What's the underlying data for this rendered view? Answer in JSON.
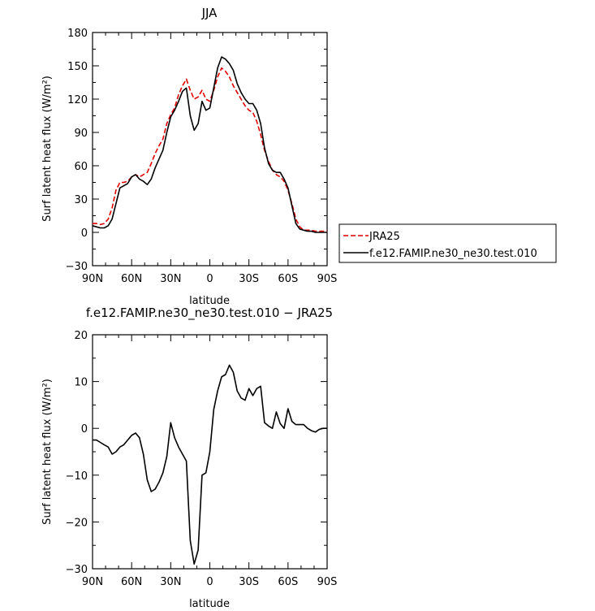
{
  "chart_data": [
    {
      "type": "line",
      "title": "JJA",
      "xlabel": "latitude",
      "ylabel": "Surf latent heat flux (W/m²)",
      "xlim": [
        90,
        -90
      ],
      "ylim": [
        -30,
        180
      ],
      "x_ticks": [
        90,
        60,
        30,
        0,
        -30,
        -60,
        -90
      ],
      "x_tick_labels": [
        "90N",
        "60N",
        "30N",
        "0",
        "30S",
        "60S",
        "90S"
      ],
      "y_ticks": [
        -30,
        0,
        30,
        60,
        90,
        120,
        150,
        180
      ],
      "y_tick_labels": [
        "−30",
        "0",
        "30",
        "60",
        "90",
        "120",
        "150",
        "180"
      ],
      "legend_position": "right",
      "series": [
        {
          "name": "JRA25",
          "color": "#e00000",
          "dash": "dashed",
          "x": [
            90,
            87,
            84,
            81,
            78,
            75,
            72,
            69,
            66,
            63,
            60,
            57,
            54,
            51,
            48,
            45,
            42,
            39,
            36,
            33,
            30,
            27,
            24,
            21,
            18,
            15,
            12,
            9,
            6,
            3,
            0,
            -3,
            -6,
            -9,
            -12,
            -15,
            -18,
            -21,
            -24,
            -27,
            -30,
            -33,
            -36,
            -39,
            -42,
            -45,
            -48,
            -51,
            -54,
            -57,
            -60,
            -63,
            -66,
            -69,
            -72,
            -75,
            -78,
            -81,
            -84,
            -87,
            -90
          ],
          "y": [
            8,
            8,
            7,
            8,
            12,
            22,
            38,
            45,
            45,
            46,
            50,
            52,
            50,
            52,
            54,
            62,
            71,
            78,
            84,
            98,
            106,
            112,
            124,
            132,
            138,
            128,
            120,
            122,
            128,
            120,
            118,
            128,
            140,
            148,
            145,
            140,
            132,
            126,
            120,
            114,
            110,
            108,
            100,
            88,
            74,
            64,
            56,
            52,
            50,
            46,
            38,
            26,
            12,
            5,
            2,
            2,
            2,
            1,
            1,
            1,
            1
          ]
        },
        {
          "name": "f.e12.FAMIP.ne30_ne30.test.010",
          "color": "#000000",
          "dash": "solid",
          "x": [
            90,
            87,
            84,
            81,
            78,
            75,
            72,
            69,
            66,
            63,
            60,
            57,
            54,
            51,
            48,
            45,
            42,
            39,
            36,
            33,
            30,
            27,
            24,
            21,
            18,
            15,
            12,
            9,
            6,
            3,
            0,
            -3,
            -6,
            -9,
            -12,
            -15,
            -18,
            -21,
            -24,
            -27,
            -30,
            -33,
            -36,
            -39,
            -42,
            -45,
            -48,
            -51,
            -54,
            -57,
            -60,
            -63,
            -66,
            -69,
            -72,
            -75,
            -78,
            -81,
            -84,
            -87,
            -90
          ],
          "y": [
            6,
            5,
            4,
            4,
            6,
            12,
            26,
            40,
            42,
            44,
            50,
            52,
            48,
            46,
            43,
            48,
            58,
            66,
            74,
            90,
            104,
            110,
            118,
            127,
            130,
            105,
            92,
            98,
            118,
            110,
            112,
            130,
            148,
            158,
            156,
            152,
            146,
            134,
            126,
            120,
            116,
            116,
            110,
            98,
            76,
            62,
            56,
            54,
            54,
            48,
            40,
            24,
            8,
            3,
            2,
            1,
            1,
            0,
            0,
            0,
            0
          ]
        }
      ]
    },
    {
      "type": "line",
      "title": "f.e12.FAMIP.ne30_ne30.test.010 − JRA25",
      "xlabel": "latitude",
      "ylabel": "Surf latent heat flux (W/m²)",
      "xlim": [
        90,
        -90
      ],
      "ylim": [
        -30,
        20
      ],
      "x_ticks": [
        90,
        60,
        30,
        0,
        -30,
        -60,
        -90
      ],
      "x_tick_labels": [
        "90N",
        "60N",
        "30N",
        "0",
        "30S",
        "60S",
        "90S"
      ],
      "y_ticks": [
        -30,
        -20,
        -10,
        0,
        10,
        20
      ],
      "y_tick_labels": [
        "−30",
        "−20",
        "−10",
        "0",
        "10",
        "20"
      ],
      "series": [
        {
          "color": "#000000",
          "dash": "solid",
          "x": [
            90,
            87,
            84,
            81,
            78,
            75,
            72,
            69,
            66,
            63,
            60,
            57,
            54,
            51,
            48,
            45,
            42,
            39,
            36,
            33,
            30,
            27,
            24,
            21,
            18,
            15,
            12,
            9,
            6,
            3,
            0,
            -3,
            -6,
            -9,
            -12,
            -15,
            -18,
            -21,
            -24,
            -27,
            -30,
            -33,
            -36,
            -39,
            -42,
            -45,
            -48,
            -51,
            -54,
            -57,
            -60,
            -63,
            -66,
            -69,
            -72,
            -75,
            -78,
            -81,
            -84,
            -87,
            -90
          ],
          "y": [
            -2.5,
            -2.5,
            -3,
            -3.5,
            -4,
            -5.5,
            -5,
            -4,
            -3.5,
            -2.5,
            -1.5,
            -1,
            -2,
            -5.5,
            -11,
            -13.5,
            -13,
            -11.5,
            -9.5,
            -6,
            1.2,
            -2,
            -4,
            -5.5,
            -7,
            -24,
            -29,
            -26,
            -10,
            -9.5,
            -5,
            4,
            8,
            11,
            11.5,
            13.5,
            12,
            8,
            6.5,
            6,
            8.5,
            7,
            8.5,
            9,
            1.2,
            0.5,
            0,
            3.5,
            1,
            0,
            4.2,
            1.5,
            0.8,
            0.8,
            0.8,
            0,
            -0.5,
            -0.8,
            -0.2,
            0,
            0
          ]
        }
      ]
    }
  ]
}
